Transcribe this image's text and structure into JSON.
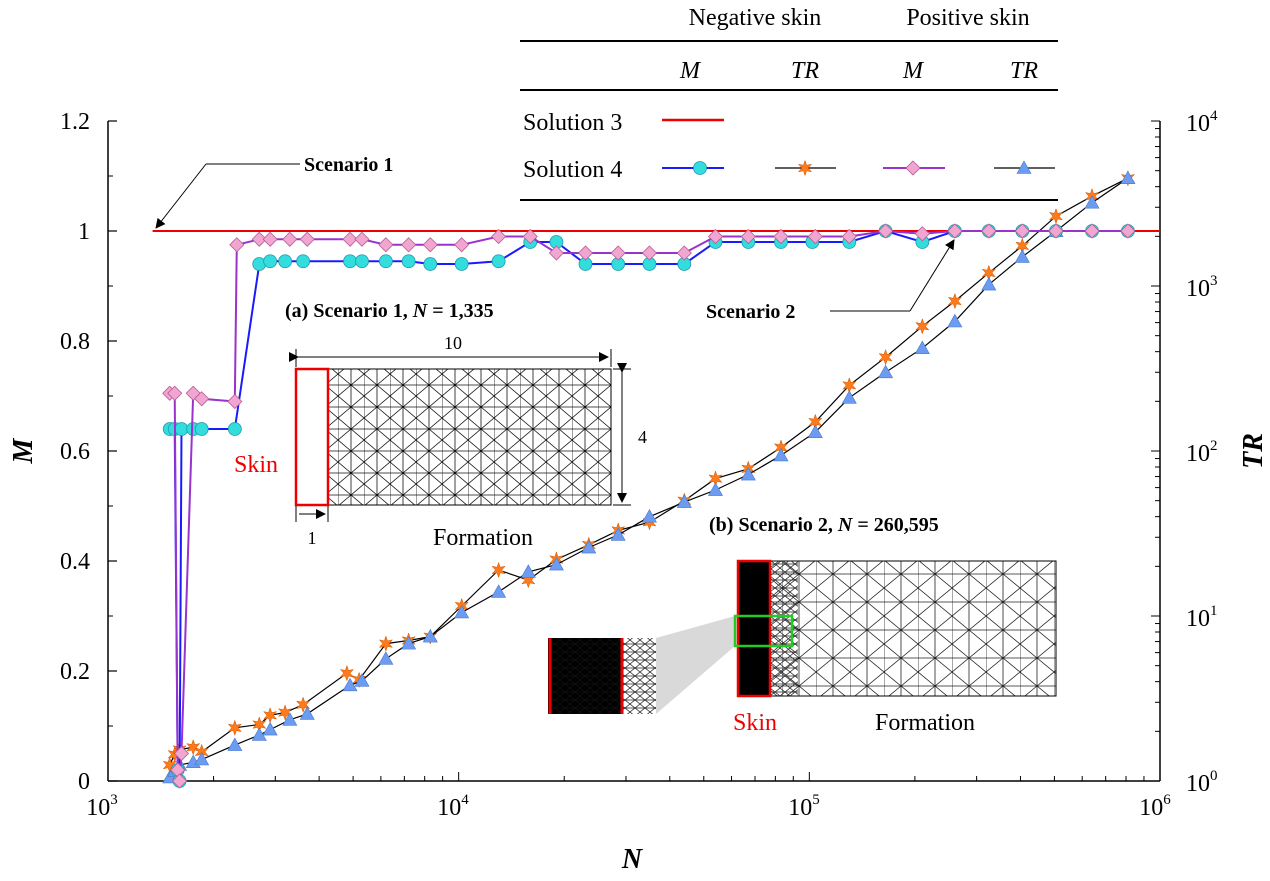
{
  "chart_data": {
    "type": "line",
    "x_axis": {
      "label": "N",
      "scale": "log",
      "range": [
        1000,
        1000000
      ],
      "tick_values": [
        1000,
        10000,
        100000,
        1000000
      ],
      "tick_labels": [
        {
          "base": "10",
          "exp": "3"
        },
        {
          "base": "10",
          "exp": "4"
        },
        {
          "base": "10",
          "exp": "5"
        },
        {
          "base": "10",
          "exp": "6"
        }
      ]
    },
    "y_left": {
      "label": "M",
      "range": [
        0,
        1.2
      ],
      "tick_labels": [
        "0",
        "0.2",
        "0.4",
        "0.6",
        "0.8",
        "1",
        "1.2"
      ]
    },
    "y_right": {
      "label": "TR",
      "scale": "log",
      "range": [
        1,
        10000
      ],
      "tick_labels": [
        {
          "base": "10",
          "exp": "0"
        },
        {
          "base": "10",
          "exp": "1"
        },
        {
          "base": "10",
          "exp": "2"
        },
        {
          "base": "10",
          "exp": "3"
        },
        {
          "base": "10",
          "exp": "4"
        }
      ]
    },
    "legend": {
      "position": "top-right",
      "header_negative": "Negative skin",
      "header_positive": "Positive skin",
      "col_m1": "M",
      "col_tr1": "TR",
      "col_m2": "M",
      "col_tr2": "TR",
      "row1": "Solution 3",
      "row2": "Solution 4"
    },
    "series": [
      {
        "name": "Solution 3 M",
        "axis": "left",
        "color": "#ee0000",
        "x": [
          1340,
          1000000
        ],
        "y": [
          1.0,
          1.0
        ]
      },
      {
        "name": "Solution 4 M (Negative skin)",
        "axis": "left",
        "color": "#1a1aff",
        "marker": "circle",
        "marker_color": "#33dddd",
        "x": [
          1500,
          1550,
          1580,
          1600,
          1620,
          1750,
          1850,
          2300,
          2700,
          2900,
          3200,
          3600,
          4900,
          5300,
          6200,
          7200,
          8300,
          10200,
          13000,
          16000,
          19000,
          23000,
          28500,
          35000,
          44000,
          54000,
          67000,
          83000,
          102000,
          130000,
          165000,
          210000,
          260000,
          325000,
          405000,
          505000,
          640000,
          810000
        ],
        "y": [
          0.64,
          0.64,
          0.02,
          0.0,
          0.64,
          0.64,
          0.64,
          0.64,
          0.94,
          0.945,
          0.945,
          0.945,
          0.945,
          0.945,
          0.945,
          0.945,
          0.94,
          0.94,
          0.945,
          0.98,
          0.98,
          0.94,
          0.94,
          0.94,
          0.94,
          0.98,
          0.98,
          0.98,
          0.98,
          0.98,
          1.0,
          0.98,
          1.0,
          1.0,
          1.0,
          1.0,
          1.0,
          1.0
        ]
      },
      {
        "name": "Solution 4 TR (Negative skin)",
        "axis": "right",
        "color": "#000000",
        "marker": "star",
        "marker_color": "#ff7a1a",
        "x": [
          1500,
          1550,
          1600,
          1750,
          1850,
          2300,
          2700,
          2900,
          3200,
          3600,
          4800,
          5200,
          6200,
          7200,
          8300,
          10200,
          13000,
          15800,
          19000,
          23500,
          28500,
          35000,
          44000,
          54000,
          67000,
          83000,
          104000,
          130000,
          165000,
          210000,
          260000,
          325000,
          405000,
          505000,
          640000,
          810000
        ],
        "y": [
          1.25,
          1.45,
          1.55,
          1.6,
          1.5,
          2.1,
          2.2,
          2.5,
          2.6,
          2.9,
          4.5,
          4.1,
          6.8,
          7.1,
          7.5,
          11.5,
          19,
          16.5,
          22,
          27,
          33,
          37,
          50,
          68,
          78,
          105,
          150,
          250,
          370,
          570,
          810,
          1200,
          1750,
          2650,
          3500,
          4500
        ]
      },
      {
        "name": "Solution 4 M (Positive skin)",
        "axis": "left",
        "color": "#9933cc",
        "marker": "diamond",
        "marker_color": "#f0a6d0",
        "x": [
          1500,
          1550,
          1580,
          1600,
          1620,
          1750,
          1850,
          2300,
          2330,
          2700,
          2900,
          3300,
          3700,
          4900,
          5300,
          6200,
          7200,
          8300,
          10200,
          13000,
          16000,
          19000,
          23000,
          28500,
          35000,
          44000,
          54000,
          67000,
          83000,
          104000,
          130000,
          165000,
          210000,
          260000,
          325000,
          405000,
          505000,
          640000,
          810000
        ],
        "y": [
          0.705,
          0.705,
          0.02,
          0.0,
          0.05,
          0.705,
          0.695,
          0.69,
          0.975,
          0.985,
          0.985,
          0.985,
          0.985,
          0.985,
          0.985,
          0.975,
          0.975,
          0.975,
          0.975,
          0.99,
          0.99,
          0.96,
          0.96,
          0.96,
          0.96,
          0.96,
          0.99,
          0.99,
          0.99,
          0.99,
          0.99,
          1.0,
          0.995,
          1.0,
          1.0,
          1.0,
          1.0,
          1.0,
          1.0
        ]
      },
      {
        "name": "Solution 4 TR (Positive skin)",
        "axis": "right",
        "color": "#000000",
        "marker": "triangle",
        "marker_color": "#6b9cf2",
        "x": [
          1500,
          1550,
          1600,
          1750,
          1850,
          2300,
          2700,
          2900,
          3300,
          3700,
          4900,
          5300,
          6200,
          7200,
          8300,
          10200,
          13000,
          15800,
          19000,
          23500,
          28500,
          35000,
          44000,
          54000,
          67000,
          83000,
          104000,
          130000,
          165000,
          210000,
          260000,
          325000,
          405000,
          505000,
          640000,
          810000
        ],
        "y": [
          1.05,
          1.15,
          1.25,
          1.3,
          1.35,
          1.65,
          1.9,
          2.05,
          2.35,
          2.55,
          3.8,
          4.05,
          5.5,
          6.8,
          7.5,
          10.5,
          14,
          18.5,
          20.5,
          26,
          31,
          40,
          49,
          58,
          72,
          94,
          130,
          210,
          300,
          420,
          610,
          1020,
          1500,
          2150,
          3200,
          4500
        ]
      }
    ],
    "annotations": {
      "scenario1_label": "Scenario 1",
      "scenario2_label": "Scenario 2"
    },
    "inset_a": {
      "title_prefix": "(a) Scenario 1, ",
      "title_var": "N",
      "title_suffix": " = 1,335",
      "dim_width": "10",
      "dim_height": "4",
      "dim_skin": "1",
      "skin_label": "Skin",
      "formation_label": "Formation"
    },
    "inset_b": {
      "title_prefix": "(b) Scenario 2, ",
      "title_var": "N",
      "title_suffix": " = 260,595",
      "skin_label": "Skin",
      "formation_label": "Formation"
    }
  }
}
